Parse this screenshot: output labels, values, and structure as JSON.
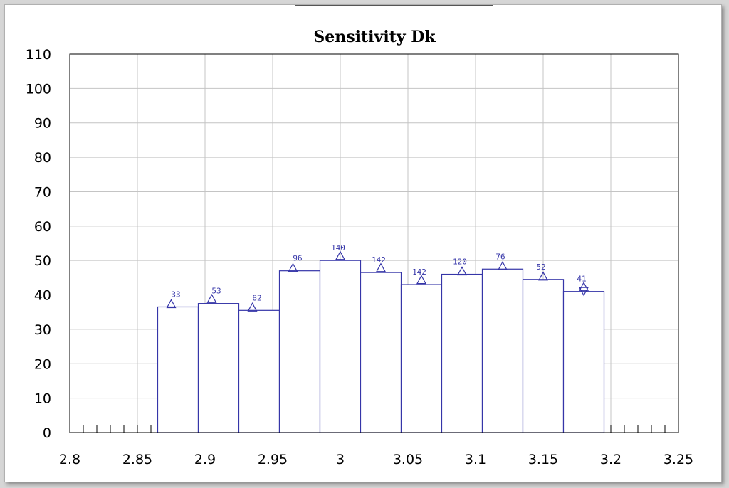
{
  "chart_data": {
    "type": "bar",
    "title": "Sensitivity Dk",
    "xlabel": "",
    "ylabel": "",
    "xlim": [
      2.8,
      3.25
    ],
    "ylim": [
      0,
      110
    ],
    "x_ticks": [
      "2.8",
      "2.85",
      "2.9",
      "2.95",
      "3",
      "3.05",
      "3.1",
      "3.15",
      "3.2",
      "3.25"
    ],
    "y_ticks": [
      "0",
      "10",
      "20",
      "30",
      "40",
      "50",
      "60",
      "70",
      "80",
      "90",
      "100",
      "110"
    ],
    "grid": true,
    "bin_width": 0.03,
    "bins": [
      {
        "center": 2.88,
        "value": 36.5,
        "label": "33"
      },
      {
        "center": 2.91,
        "value": 37.5,
        "label": "53"
      },
      {
        "center": 2.94,
        "value": 35.5,
        "label": "82"
      },
      {
        "center": 2.97,
        "value": 47.0,
        "label": "96"
      },
      {
        "center": 3.0,
        "value": 50.0,
        "label": "140"
      },
      {
        "center": 3.03,
        "value": 46.5,
        "label": "142"
      },
      {
        "center": 3.06,
        "value": 43.0,
        "label": "142"
      },
      {
        "center": 3.09,
        "value": 46.0,
        "label": "120"
      },
      {
        "center": 3.12,
        "value": 47.5,
        "label": "76"
      },
      {
        "center": 3.15,
        "value": 44.5,
        "label": "52"
      },
      {
        "center": 3.18,
        "value": 41.0,
        "label": "41"
      }
    ],
    "markers": [
      {
        "x": 2.875,
        "y": 36.5,
        "shape": "triangle-up"
      },
      {
        "x": 2.905,
        "y": 38.0,
        "shape": "triangle-up"
      },
      {
        "x": 2.935,
        "y": 35.5,
        "shape": "triangle-up"
      },
      {
        "x": 2.965,
        "y": 47.0,
        "shape": "triangle-up"
      },
      {
        "x": 3.0,
        "y": 50.5,
        "shape": "triangle-up"
      },
      {
        "x": 3.03,
        "y": 47.0,
        "shape": "triangle-up"
      },
      {
        "x": 3.06,
        "y": 43.5,
        "shape": "triangle-up"
      },
      {
        "x": 3.09,
        "y": 46.0,
        "shape": "triangle-up"
      },
      {
        "x": 3.12,
        "y": 47.5,
        "shape": "triangle-up"
      },
      {
        "x": 3.15,
        "y": 44.5,
        "shape": "triangle-up"
      },
      {
        "x": 3.18,
        "y": 41.5,
        "shape": "triangle-up"
      },
      {
        "x": 3.18,
        "y": 40.5,
        "shape": "triangle-down"
      }
    ],
    "minor_ticks_per_major": 5,
    "colors": {
      "bars": "#3535a8",
      "grid": "#c4c4c4",
      "axis": "#000000",
      "background": "#ffffff"
    }
  }
}
